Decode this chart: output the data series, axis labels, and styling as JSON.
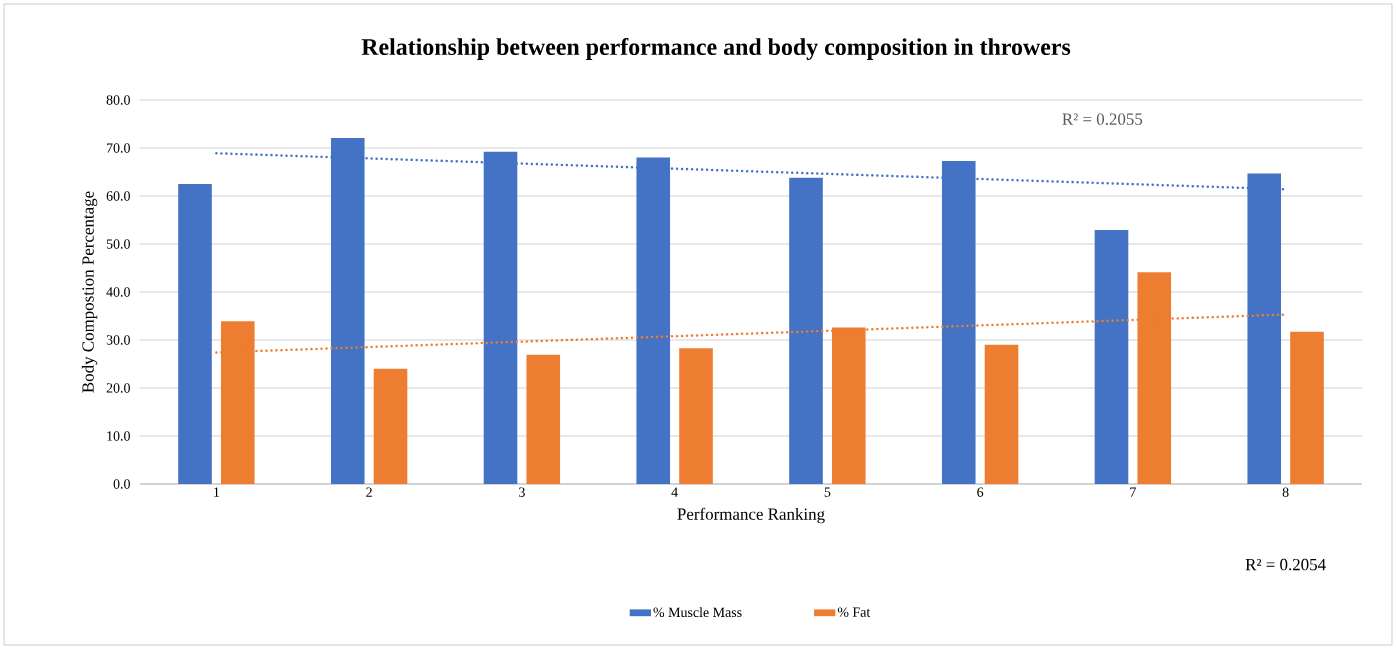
{
  "chart_data": {
    "type": "bar",
    "title": "Relationship between performance and body composition in throwers",
    "xlabel": "Performance Ranking",
    "ylabel": "Body Compostion Percentage",
    "categories": [
      "1",
      "2",
      "3",
      "4",
      "5",
      "6",
      "7",
      "8"
    ],
    "series": [
      {
        "name": "% Muscle Mass",
        "color": "#4472c4",
        "values": [
          62.5,
          72.1,
          69.2,
          68.0,
          63.8,
          67.3,
          52.9,
          64.7
        ]
      },
      {
        "name": "% Fat",
        "color": "#ed7d31",
        "values": [
          33.9,
          24.0,
          26.9,
          28.3,
          32.6,
          29.0,
          44.1,
          31.7
        ]
      },
      {
        "type": "line",
        "color": "#4472c4",
        "x": [
          "1",
          "8"
        ],
        "values": [
          68.9,
          61.4
        ],
        "line_style": "dotted"
      },
      {
        "type": "line",
        "color": "#ed7d31",
        "x": [
          "1",
          "8"
        ],
        "values": [
          27.4,
          35.3
        ],
        "line_style": "dotted"
      }
    ],
    "annotations": [
      "R² = 0.2055",
      "R² = 0.2054"
    ],
    "ylim": [
      0,
      80
    ],
    "yticks": [
      {
        "value": 0,
        "label": "0.0"
      },
      {
        "value": 10,
        "label": "10.0"
      },
      {
        "value": 20,
        "label": "20.0"
      },
      {
        "value": 30,
        "label": "30.0"
      },
      {
        "value": 40,
        "label": "40.0"
      },
      {
        "value": 50,
        "label": "50.0"
      },
      {
        "value": 60,
        "label": "60.0"
      },
      {
        "value": 70,
        "label": "70.0"
      },
      {
        "value": 80,
        "label": "80.0"
      }
    ],
    "grid": "y",
    "legend": "bottom"
  }
}
